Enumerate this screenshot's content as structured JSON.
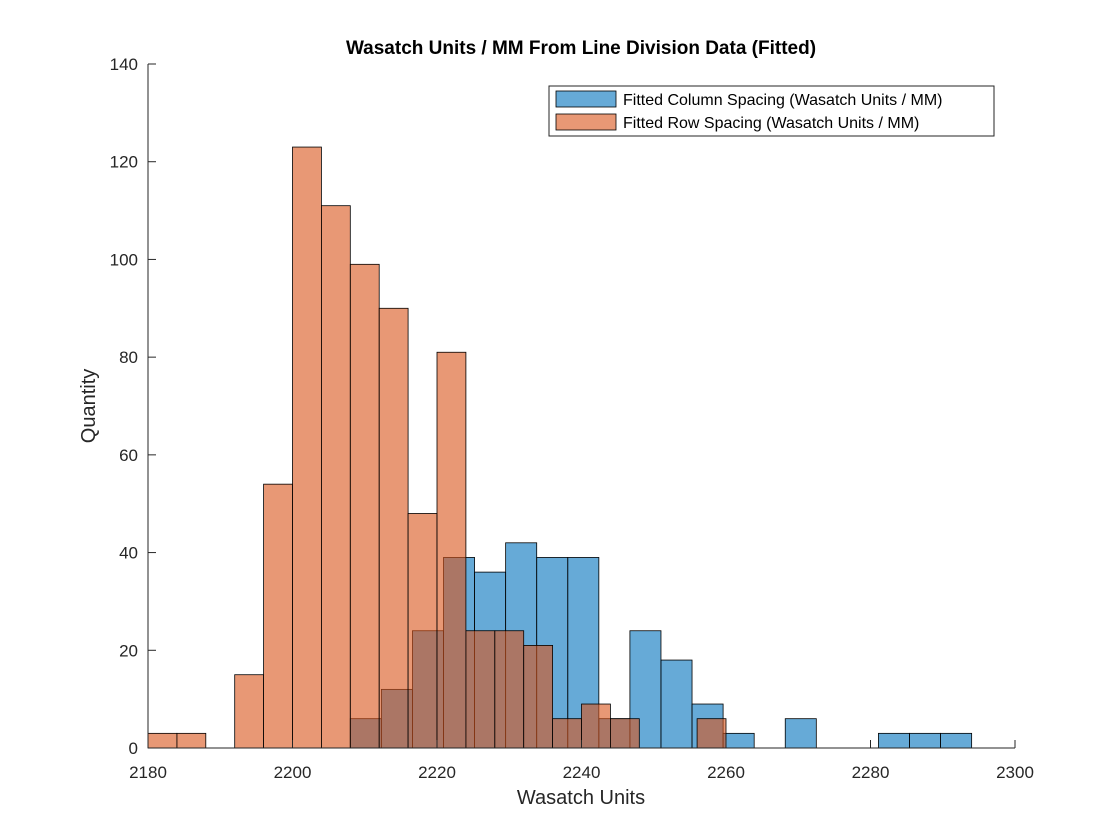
{
  "chart_data": {
    "type": "bar",
    "title": "Wasatch Units / MM From Line Division Data (Fitted)",
    "xlabel": "Wasatch Units",
    "ylabel": "Quantity",
    "xlim": [
      2180,
      2300
    ],
    "ylim": [
      0,
      140
    ],
    "xticks": [
      2180,
      2200,
      2220,
      2240,
      2260,
      2280,
      2300
    ],
    "yticks": [
      0,
      20,
      40,
      60,
      80,
      100,
      120,
      140
    ],
    "grid": false,
    "legend_position": "top-right",
    "series": [
      {
        "name": "Fitted Column Spacing (Wasatch Units / MM)",
        "color": "#0072BD",
        "bins": [
          {
            "x0": 2208.0,
            "x1": 2212.3,
            "y": 6
          },
          {
            "x0": 2212.3,
            "x1": 2216.6,
            "y": 12
          },
          {
            "x0": 2216.6,
            "x1": 2220.9,
            "y": 24
          },
          {
            "x0": 2220.9,
            "x1": 2225.2,
            "y": 39
          },
          {
            "x0": 2225.2,
            "x1": 2229.5,
            "y": 36
          },
          {
            "x0": 2229.5,
            "x1": 2233.8,
            "y": 42
          },
          {
            "x0": 2233.8,
            "x1": 2238.1,
            "y": 39
          },
          {
            "x0": 2238.1,
            "x1": 2242.4,
            "y": 39
          },
          {
            "x0": 2242.4,
            "x1": 2246.7,
            "y": 6
          },
          {
            "x0": 2246.7,
            "x1": 2251.0,
            "y": 24
          },
          {
            "x0": 2251.0,
            "x1": 2255.3,
            "y": 18
          },
          {
            "x0": 2255.3,
            "x1": 2259.6,
            "y": 9
          },
          {
            "x0": 2259.6,
            "x1": 2263.9,
            "y": 3
          },
          {
            "x0": 2263.9,
            "x1": 2268.2,
            "y": 0
          },
          {
            "x0": 2268.2,
            "x1": 2272.5,
            "y": 6
          },
          {
            "x0": 2272.5,
            "x1": 2276.8,
            "y": 0
          },
          {
            "x0": 2276.8,
            "x1": 2281.1,
            "y": 0
          },
          {
            "x0": 2281.1,
            "x1": 2285.4,
            "y": 3
          },
          {
            "x0": 2285.4,
            "x1": 2289.7,
            "y": 3
          },
          {
            "x0": 2289.7,
            "x1": 2294.0,
            "y": 3
          }
        ]
      },
      {
        "name": "Fitted Row Spacing (Wasatch Units / MM)",
        "color": "#D95319",
        "bins": [
          {
            "x0": 2180,
            "x1": 2184,
            "y": 3
          },
          {
            "x0": 2184,
            "x1": 2188,
            "y": 3
          },
          {
            "x0": 2188,
            "x1": 2192,
            "y": 0
          },
          {
            "x0": 2192,
            "x1": 2196,
            "y": 15
          },
          {
            "x0": 2196,
            "x1": 2200,
            "y": 54
          },
          {
            "x0": 2200,
            "x1": 2204,
            "y": 123
          },
          {
            "x0": 2204,
            "x1": 2208,
            "y": 111
          },
          {
            "x0": 2208,
            "x1": 2212,
            "y": 99
          },
          {
            "x0": 2212,
            "x1": 2216,
            "y": 90
          },
          {
            "x0": 2216,
            "x1": 2220,
            "y": 48
          },
          {
            "x0": 2220,
            "x1": 2224,
            "y": 81
          },
          {
            "x0": 2224,
            "x1": 2228,
            "y": 24
          },
          {
            "x0": 2228,
            "x1": 2232,
            "y": 24
          },
          {
            "x0": 2232,
            "x1": 2236,
            "y": 21
          },
          {
            "x0": 2236,
            "x1": 2240,
            "y": 6
          },
          {
            "x0": 2240,
            "x1": 2244,
            "y": 9
          },
          {
            "x0": 2244,
            "x1": 2248,
            "y": 6
          },
          {
            "x0": 2248,
            "x1": 2252,
            "y": 0
          },
          {
            "x0": 2252,
            "x1": 2256,
            "y": 0
          },
          {
            "x0": 2256,
            "x1": 2260,
            "y": 6
          }
        ]
      }
    ]
  }
}
